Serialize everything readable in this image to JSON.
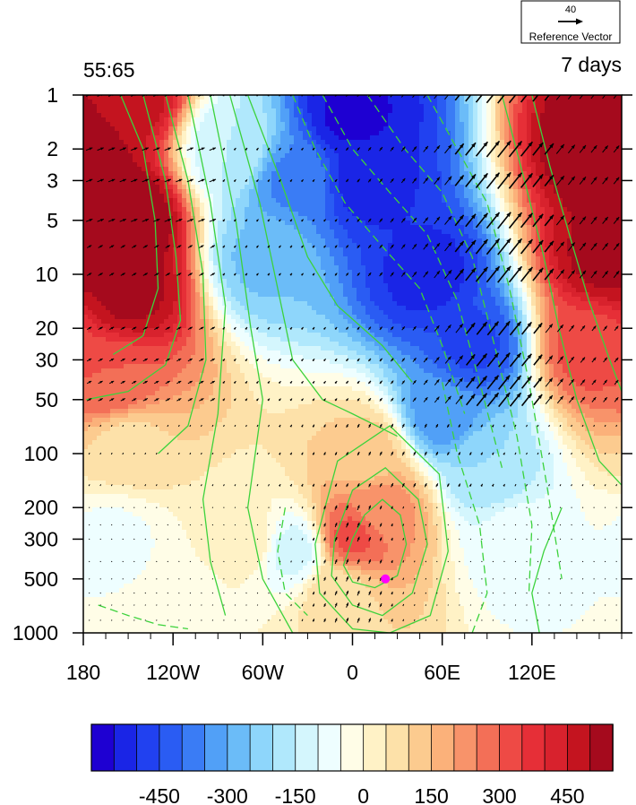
{
  "chart_data": {
    "type": "heatmap",
    "title_left": "55:65",
    "title_right": "7 days",
    "reference_vector": {
      "value": "40",
      "label": "Reference Vector"
    },
    "x_axis": {
      "range": [
        -180,
        180
      ],
      "ticks": [
        -180,
        -120,
        -60,
        0,
        60,
        120
      ],
      "tick_labels": [
        "180",
        "120W",
        "60W",
        "0",
        "60E",
        "120E"
      ],
      "minor_step": 15
    },
    "y_axis": {
      "scale": "log",
      "reversed": true,
      "range": [
        1,
        1000
      ],
      "ticks": [
        1,
        2,
        3,
        5,
        10,
        20,
        30,
        50,
        100,
        200,
        300,
        500,
        1000
      ],
      "tick_labels": [
        "1",
        "2",
        "3",
        "5",
        "10",
        "20",
        "30",
        "50",
        "100",
        "200",
        "300",
        "500",
        "1000"
      ]
    },
    "colorbar": {
      "levels": [
        -550,
        -500,
        -450,
        -400,
        -350,
        -300,
        -250,
        -200,
        -150,
        -100,
        -50,
        0,
        50,
        100,
        150,
        200,
        250,
        300,
        350,
        400,
        450,
        500,
        550
      ],
      "colors": [
        "#1e00d2",
        "#1a25e6",
        "#2141f0",
        "#2a5cf3",
        "#3a7cf5",
        "#51a0f7",
        "#6bbcf8",
        "#8ed6fb",
        "#b0e8fc",
        "#d4f6fd",
        "#eefeff",
        "#fffde7",
        "#fff2c6",
        "#fde1a9",
        "#fccb8f",
        "#fbb17a",
        "#f8936a",
        "#f36f57",
        "#ee4a45",
        "#e62f37",
        "#d8222d",
        "#c4141f",
        "#a50a1d"
      ],
      "tick_values": [
        -450,
        -300,
        -150,
        0,
        150,
        300,
        450
      ],
      "tick_labels": [
        "-450",
        "-300",
        "-150",
        "0",
        "150",
        "300",
        "450"
      ]
    },
    "field_features": [
      {
        "lon": -150,
        "p": 5,
        "value": 575
      },
      {
        "lon": -150,
        "p": 12,
        "value": 520
      },
      {
        "lon": -160,
        "p": 40,
        "value": 300
      },
      {
        "lon": -150,
        "p": 1,
        "value": 480
      },
      {
        "lon": 170,
        "p": 2,
        "value": 600
      },
      {
        "lon": 170,
        "p": 8,
        "value": 520
      },
      {
        "lon": 160,
        "p": 25,
        "value": 330
      },
      {
        "lon": 0,
        "p": 1.3,
        "value": -560
      },
      {
        "lon": 10,
        "p": 3,
        "value": -520
      },
      {
        "lon": 50,
        "p": 10,
        "value": -520
      },
      {
        "lon": 80,
        "p": 25,
        "value": -460
      },
      {
        "lon": 60,
        "p": 60,
        "value": -330
      },
      {
        "lon": 90,
        "p": 120,
        "value": -200
      },
      {
        "lon": 110,
        "p": 300,
        "value": -80
      },
      {
        "lon": -40,
        "p": 3,
        "value": -360
      },
      {
        "lon": -80,
        "p": 2,
        "value": -150
      },
      {
        "lon": -60,
        "p": 8,
        "value": -260
      },
      {
        "lon": 0,
        "p": 290,
        "value": 310
      },
      {
        "lon": 20,
        "p": 200,
        "value": 220
      },
      {
        "lon": 10,
        "p": 100,
        "value": 120
      },
      {
        "lon": -10,
        "p": 600,
        "value": 80
      },
      {
        "lon": -70,
        "p": 300,
        "value": 30
      },
      {
        "lon": -160,
        "p": 300,
        "value": -60
      },
      {
        "lon": -120,
        "p": 800,
        "value": -40
      },
      {
        "lon": -40,
        "p": 350,
        "value": -120
      },
      {
        "lon": -150,
        "p": 90,
        "value": 80
      }
    ],
    "marker": {
      "lon": 22,
      "p": 500,
      "color": "#ff00ff"
    }
  }
}
